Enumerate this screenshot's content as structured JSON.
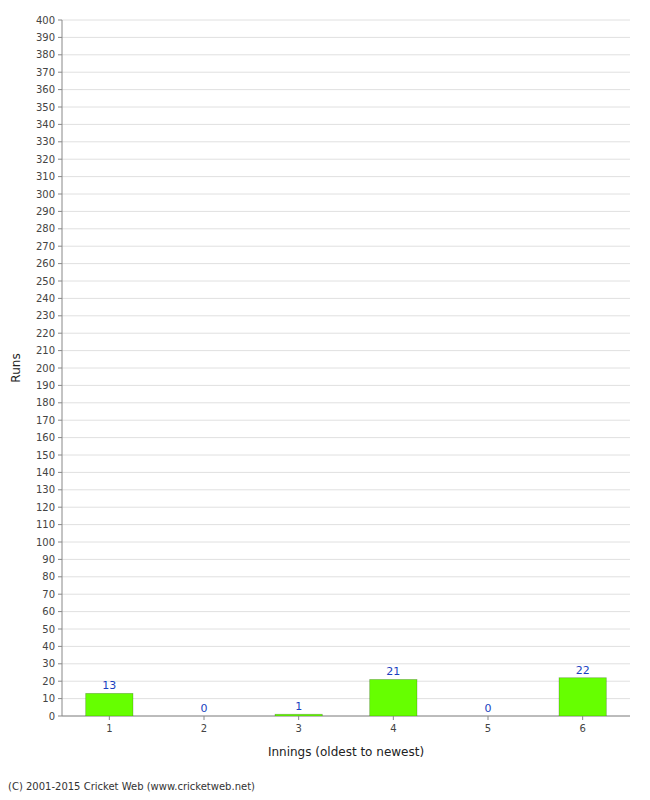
{
  "chart_data": {
    "type": "bar",
    "x": [
      1,
      2,
      3,
      4,
      5,
      6
    ],
    "values": [
      13,
      0,
      1,
      21,
      0,
      22
    ],
    "color": "#66ff00",
    "x_label": "Innings (oldest to newest)",
    "y_label": "Runs",
    "xlim": [
      0.5,
      6.5
    ],
    "xticks": [
      1,
      2,
      3,
      4,
      5,
      6
    ],
    "ylim": [
      0,
      400
    ],
    "yticks": [
      0,
      10,
      20,
      30,
      40,
      50,
      60,
      70,
      80,
      90,
      100,
      110,
      120,
      130,
      140,
      150,
      160,
      170,
      180,
      190,
      200,
      210,
      220,
      230,
      240,
      250,
      260,
      270,
      280,
      290,
      300,
      310,
      320,
      330,
      340,
      350,
      360,
      370,
      380,
      390,
      400
    ],
    "grid": true,
    "data_labels": true,
    "annotations": [
      "(C) 2001-2015 Cricket Web (www.cricketweb.net)"
    ]
  }
}
